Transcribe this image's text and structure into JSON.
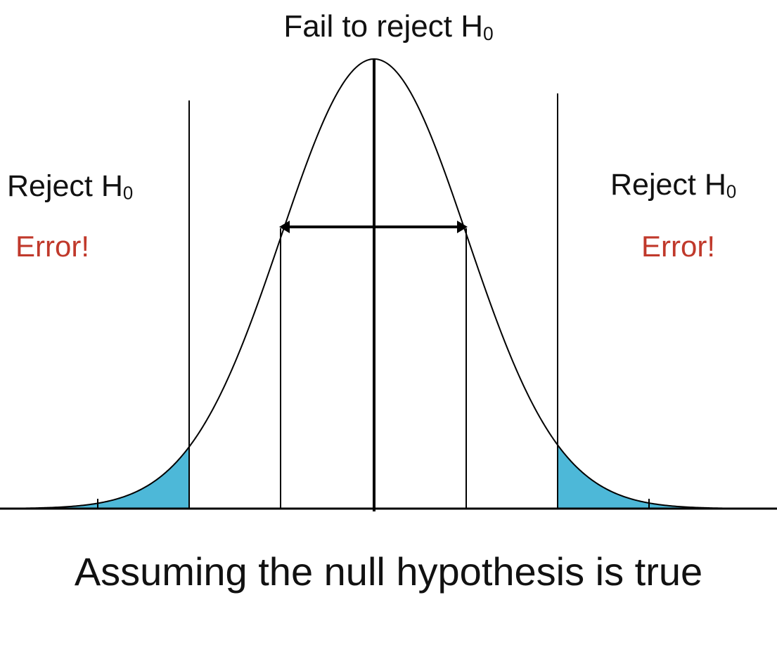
{
  "diagram": {
    "top_label": {
      "text": "Fail to reject H",
      "subscript": "0"
    },
    "left_region": {
      "label": {
        "text": "Reject H",
        "subscript": "0"
      },
      "error": "Error!"
    },
    "right_region": {
      "label": {
        "text": "Reject H",
        "subscript": "0"
      },
      "error": "Error!"
    },
    "caption": "Assuming the null hypothesis is true",
    "colors": {
      "error_text": "#c0392b",
      "tail_fill": "#4db8d8",
      "curve": "#000000",
      "text": "#111111"
    },
    "icons": [
      "double-headed-arrow-icon"
    ]
  }
}
